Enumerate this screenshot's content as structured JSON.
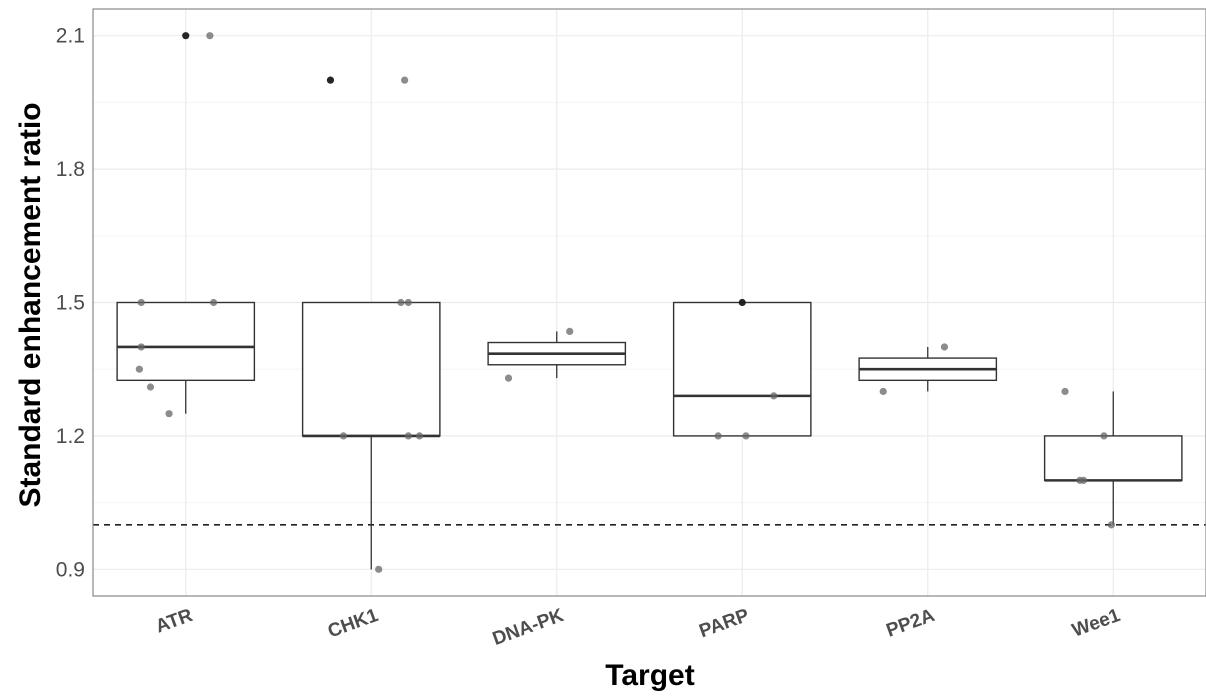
{
  "chart_data": {
    "type": "boxplot",
    "xlabel": "Target",
    "ylabel": "Standard enhancement ratio",
    "ylim": [
      0.84,
      2.16
    ],
    "yticks": [
      0.9,
      1.2,
      1.5,
      1.8,
      2.1
    ],
    "grid": true,
    "reference_line": {
      "y": 1.0,
      "style": "dashed"
    },
    "categories": [
      "ATR",
      "CHK1",
      "DNA-PK",
      "PARP",
      "PP2A",
      "Wee1"
    ],
    "boxes": [
      {
        "category": "ATR",
        "whisker_low": 1.25,
        "q1": 1.325,
        "median": 1.4,
        "q3": 1.5,
        "whisker_high": 1.5
      },
      {
        "category": "CHK1",
        "whisker_low": 0.9,
        "q1": 1.2,
        "median": 1.2,
        "q3": 1.5,
        "whisker_high": 1.5
      },
      {
        "category": "DNA-PK",
        "whisker_low": 1.33,
        "q1": 1.36,
        "median": 1.385,
        "q3": 1.41,
        "whisker_high": 1.435
      },
      {
        "category": "PARP",
        "whisker_low": 1.2,
        "q1": 1.2,
        "median": 1.29,
        "q3": 1.5,
        "whisker_high": 1.5
      },
      {
        "category": "PP2A",
        "whisker_low": 1.3,
        "q1": 1.325,
        "median": 1.35,
        "q3": 1.375,
        "whisker_high": 1.4
      },
      {
        "category": "Wee1",
        "whisker_low": 1.0,
        "q1": 1.1,
        "median": 1.1,
        "q3": 1.2,
        "whisker_high": 1.3
      }
    ],
    "points": [
      {
        "category": "ATR",
        "jitter": 0.0,
        "y": 2.1,
        "dark": true
      },
      {
        "category": "ATR",
        "jitter": 0.13,
        "y": 2.1,
        "dark": false
      },
      {
        "category": "ATR",
        "jitter": -0.24,
        "y": 1.5,
        "dark": false
      },
      {
        "category": "ATR",
        "jitter": 0.15,
        "y": 1.5,
        "dark": false
      },
      {
        "category": "ATR",
        "jitter": -0.24,
        "y": 1.4,
        "dark": false
      },
      {
        "category": "ATR",
        "jitter": -0.25,
        "y": 1.35,
        "dark": false
      },
      {
        "category": "ATR",
        "jitter": -0.19,
        "y": 1.31,
        "dark": false
      },
      {
        "category": "ATR",
        "jitter": -0.09,
        "y": 1.25,
        "dark": false
      },
      {
        "category": "CHK1",
        "jitter": -0.22,
        "y": 2.0,
        "dark": true
      },
      {
        "category": "CHK1",
        "jitter": 0.18,
        "y": 2.0,
        "dark": false
      },
      {
        "category": "CHK1",
        "jitter": 0.16,
        "y": 1.5,
        "dark": false
      },
      {
        "category": "CHK1",
        "jitter": 0.2,
        "y": 1.5,
        "dark": false
      },
      {
        "category": "CHK1",
        "jitter": -0.15,
        "y": 1.2,
        "dark": false
      },
      {
        "category": "CHK1",
        "jitter": 0.2,
        "y": 1.2,
        "dark": false
      },
      {
        "category": "CHK1",
        "jitter": 0.26,
        "y": 1.2,
        "dark": false
      },
      {
        "category": "CHK1",
        "jitter": 0.04,
        "y": 0.9,
        "dark": false
      },
      {
        "category": "DNA-PK",
        "jitter": 0.07,
        "y": 1.435,
        "dark": false
      },
      {
        "category": "DNA-PK",
        "jitter": -0.26,
        "y": 1.33,
        "dark": false
      },
      {
        "category": "PARP",
        "jitter": 0.0,
        "y": 1.5,
        "dark": true
      },
      {
        "category": "PARP",
        "jitter": 0.17,
        "y": 1.29,
        "dark": false
      },
      {
        "category": "PARP",
        "jitter": -0.13,
        "y": 1.2,
        "dark": false
      },
      {
        "category": "PARP",
        "jitter": 0.02,
        "y": 1.2,
        "dark": false
      },
      {
        "category": "PP2A",
        "jitter": 0.09,
        "y": 1.4,
        "dark": false
      },
      {
        "category": "PP2A",
        "jitter": -0.24,
        "y": 1.3,
        "dark": false
      },
      {
        "category": "Wee1",
        "jitter": -0.26,
        "y": 1.3,
        "dark": false
      },
      {
        "category": "Wee1",
        "jitter": -0.05,
        "y": 1.2,
        "dark": false
      },
      {
        "category": "Wee1",
        "jitter": -0.18,
        "y": 1.1,
        "dark": false
      },
      {
        "category": "Wee1",
        "jitter": -0.16,
        "y": 1.1,
        "dark": false
      },
      {
        "category": "Wee1",
        "jitter": -0.01,
        "y": 1.0,
        "dark": false
      }
    ],
    "colors": {
      "box_stroke": "#333333",
      "whisker": "#333333",
      "point_light": "#666666",
      "point_dark": "#1a1a1a",
      "grid_major": "#ebebeb",
      "grid_minor": "#f5f5f5",
      "panel_border": "#888888",
      "reference_line": "#222222"
    }
  }
}
